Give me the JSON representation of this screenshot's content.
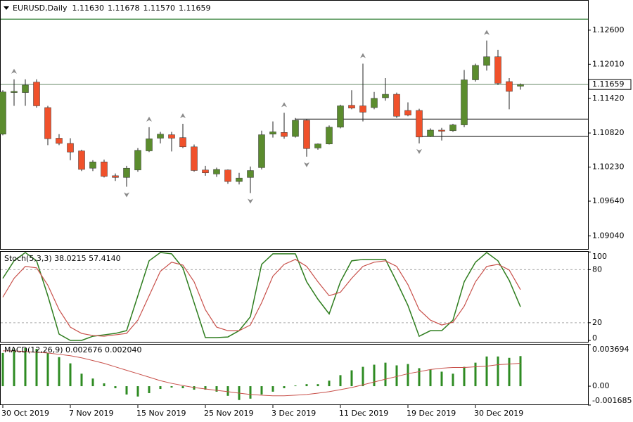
{
  "chart_data": [
    {
      "type": "candlestick",
      "title": "EURUSD,Daily",
      "ohlc_labels": [
        "1.11630",
        "1.11678",
        "1.11570",
        "1.11659"
      ],
      "categories": [
        "30 Oct 2019",
        null,
        null,
        null,
        null,
        null,
        "7 Nov 2019",
        null,
        null,
        null,
        null,
        null,
        "15 Nov 2019",
        null,
        null,
        null,
        null,
        null,
        "25 Nov 2019",
        null,
        null,
        null,
        null,
        null,
        "3 Dec 2019",
        null,
        null,
        null,
        null,
        null,
        "11 Dec 2019",
        null,
        null,
        null,
        null,
        null,
        "19 Dec 2019",
        null,
        null,
        null,
        null,
        null,
        "30 Dec 2019",
        null,
        null,
        null,
        null
      ],
      "open": [
        1.108,
        1.1152,
        1.1152,
        1.117,
        1.1126,
        1.1073,
        1.1064,
        1.1051,
        1.1021,
        1.1032,
        1.1008,
        1.1005,
        1.1018,
        1.1051,
        1.1073,
        1.1079,
        1.1074,
        1.1058,
        1.1018,
        1.1011,
        1.1018,
        1.0998,
        1.1005,
        1.1022,
        1.108,
        1.1083,
        1.1076,
        1.1104,
        1.1056,
        1.1063,
        1.1092,
        1.113,
        1.1129,
        1.1126,
        1.1143,
        1.1149,
        1.1121,
        1.1121,
        1.1076,
        1.1087,
        1.1086,
        1.1096,
        1.1174,
        1.1199,
        1.1214,
        1.1171,
        1.1163
      ],
      "high": [
        1.1156,
        1.1175,
        1.1175,
        1.1175,
        1.1129,
        1.108,
        1.1073,
        1.1053,
        1.1035,
        1.1036,
        1.1012,
        1.1025,
        1.1056,
        1.1092,
        1.1084,
        1.1084,
        1.1098,
        1.1062,
        1.1025,
        1.1022,
        1.1019,
        1.1013,
        1.1024,
        1.1086,
        1.1102,
        1.1117,
        1.1108,
        1.1106,
        1.1064,
        1.1095,
        1.1131,
        1.1156,
        1.1202,
        1.1153,
        1.1177,
        1.1152,
        1.1135,
        1.1124,
        1.109,
        1.1091,
        1.1098,
        1.1191,
        1.1202,
        1.1242,
        1.1226,
        1.1177,
        1.11678
      ],
      "low": [
        1.1078,
        1.1129,
        1.1129,
        1.1126,
        1.1061,
        1.1061,
        1.1035,
        1.1016,
        1.1016,
        1.1005,
        1.0999,
        1.0989,
        1.1015,
        1.1049,
        1.1064,
        1.105,
        1.1056,
        1.1015,
        1.1008,
        1.1006,
        1.0994,
        1.0993,
        1.0978,
        1.1019,
        1.1074,
        1.1072,
        1.1074,
        1.1041,
        1.1053,
        1.1062,
        1.109,
        1.1123,
        1.1102,
        1.1123,
        1.1138,
        1.1108,
        1.1111,
        1.1064,
        1.1075,
        1.1069,
        1.1084,
        1.1092,
        1.1171,
        1.119,
        1.1165,
        1.1123,
        1.1157
      ],
      "close": [
        1.1153,
        1.1154,
        1.1165,
        1.1129,
        1.1072,
        1.1064,
        1.1049,
        1.1019,
        1.1032,
        1.1007,
        1.1005,
        1.1021,
        1.1052,
        1.1072,
        1.108,
        1.1073,
        1.1058,
        1.1017,
        1.1013,
        1.1019,
        1.0998,
        1.1004,
        1.1017,
        1.1079,
        1.1084,
        1.1076,
        1.1104,
        1.1055,
        1.1063,
        1.1092,
        1.1129,
        1.1125,
        1.1118,
        1.1142,
        1.1149,
        1.1111,
        1.1113,
        1.1075,
        1.1087,
        1.1085,
        1.1096,
        1.1174,
        1.1199,
        1.1214,
        1.1168,
        1.1154,
        1.11659
      ],
      "up_color": "#5b8c2e",
      "down_color": "#f0512b",
      "fractals_up": [
        1,
        13,
        16,
        25,
        32,
        43
      ],
      "fractals_down": [
        11,
        22,
        27,
        37
      ],
      "fractal_color": "#8a8a8a",
      "hlines": [
        {
          "value": 1.1279,
          "color": "#2e7d32"
        },
        {
          "value": 1.1106,
          "color": "#333333",
          "x_from": 26
        },
        {
          "value": 1.1076,
          "color": "#333333",
          "x_from": 37
        }
      ],
      "price_line": {
        "value": 1.11659,
        "label": "1.11659",
        "color": "#6f8f6f"
      },
      "ylim": [
        1.088,
        1.1311
      ],
      "yticks": [
        {
          "value": 1.126,
          "label": "1.12600"
        },
        {
          "value": 1.1201,
          "label": "1.12010"
        },
        {
          "value": 1.1142,
          "label": "1.11420"
        },
        {
          "value": 1.1082,
          "label": "1.10820"
        },
        {
          "value": 1.1023,
          "label": "1.10230"
        },
        {
          "value": 1.0964,
          "label": "1.09640"
        },
        {
          "value": 1.0904,
          "label": "1.09040"
        }
      ]
    },
    {
      "type": "line",
      "title": "Stoch(5,3,3) 38.0215 57.4140",
      "series": [
        {
          "color": "#2e7d1e",
          "values": [
            70.2,
            90.0,
            99.4,
            90.0,
            50.5,
            7.1,
            0,
            0,
            4.7,
            6.3,
            7.9,
            11.0,
            50.5,
            90.0,
            99.4,
            97.9,
            82.1,
            42.6,
            3.2,
            3.2,
            3.9,
            11.0,
            26.8,
            86.0,
            97.9,
            97.9,
            97.9,
            66.3,
            46.6,
            30.0,
            66.3,
            90.0,
            91.6,
            91.6,
            91.6,
            66.3,
            39.5,
            4.7,
            11.0,
            11.0,
            22.9,
            66.3,
            88.4,
            99.4,
            90.0,
            67.9,
            38.0215
          ]
        },
        {
          "color": "#c8504a",
          "values": [
            48.9,
            70.2,
            83.7,
            82.1,
            62.4,
            34.7,
            15.0,
            7.9,
            5.5,
            4.7,
            6.3,
            7.9,
            22.9,
            50.5,
            78.1,
            88.4,
            85.2,
            66.3,
            34.7,
            15.0,
            11.0,
            11.0,
            17.4,
            42.6,
            72.6,
            86.0,
            91.6,
            83.7,
            66.3,
            50.5,
            54.5,
            70.2,
            83.7,
            88.4,
            90.0,
            83.7,
            63.1,
            34.7,
            22.9,
            17.4,
            20.5,
            38.7,
            66.3,
            83.7,
            86.0,
            79.7,
            57.414
          ]
        }
      ],
      "levels": [
        20,
        80
      ],
      "ylim": [
        -2.4,
        100.2
      ],
      "yticks": [
        100,
        80,
        20,
        0
      ]
    },
    {
      "type": "macd",
      "title": "MACD(12,26,9) 0.002676 0.002040",
      "series": [
        {
          "type": "bar",
          "color": "#2e8b22",
          "values": [
            0.00295,
            0.00326,
            0.00338,
            0.00332,
            0.00295,
            0.00258,
            0.00203,
            0.00111,
            0.00068,
            0.00025,
            -0.00018,
            -0.00074,
            -0.00092,
            -0.00062,
            -0.00025,
            -0.00012,
            -0.00018,
            -0.00031,
            -0.00031,
            -0.00049,
            -0.00086,
            -0.00123,
            -0.00111,
            -0.00074,
            -0.00049,
            -0.00018,
            6e-05,
            0.00018,
            0.00018,
            0.00049,
            0.00098,
            0.00141,
            0.00172,
            0.00191,
            0.00209,
            0.00185,
            0.00197,
            0.0016,
            0.00148,
            0.00129,
            0.00111,
            0.00172,
            0.00209,
            0.00264,
            0.00264,
            0.00252,
            0.002676
          ]
        },
        {
          "type": "line",
          "color": "#c8504a",
          "values": [
            0.00314,
            0.00314,
            0.00308,
            0.00301,
            0.00295,
            0.00283,
            0.00271,
            0.00252,
            0.00228,
            0.00203,
            0.00172,
            0.00141,
            0.00111,
            0.0008,
            0.00049,
            0.00025,
            6e-05,
            -0.00012,
            -0.00025,
            -0.00037,
            -0.00049,
            -0.00062,
            -0.00074,
            -0.0008,
            -0.00086,
            -0.00086,
            -0.0008,
            -0.00074,
            -0.00062,
            -0.00049,
            -0.00031,
            -0.00012,
            0.00012,
            0.00037,
            0.00062,
            0.00086,
            0.00111,
            0.00129,
            0.00148,
            0.0016,
            0.00166,
            0.00166,
            0.00172,
            0.00178,
            0.00191,
            0.00197,
            0.00204
          ]
        }
      ],
      "ylim": [
        -0.001685,
        0.003694
      ],
      "yticks": [
        0.003694,
        {
          "value": 0,
          "label": "0.00"
        },
        -0.001685
      ]
    }
  ]
}
